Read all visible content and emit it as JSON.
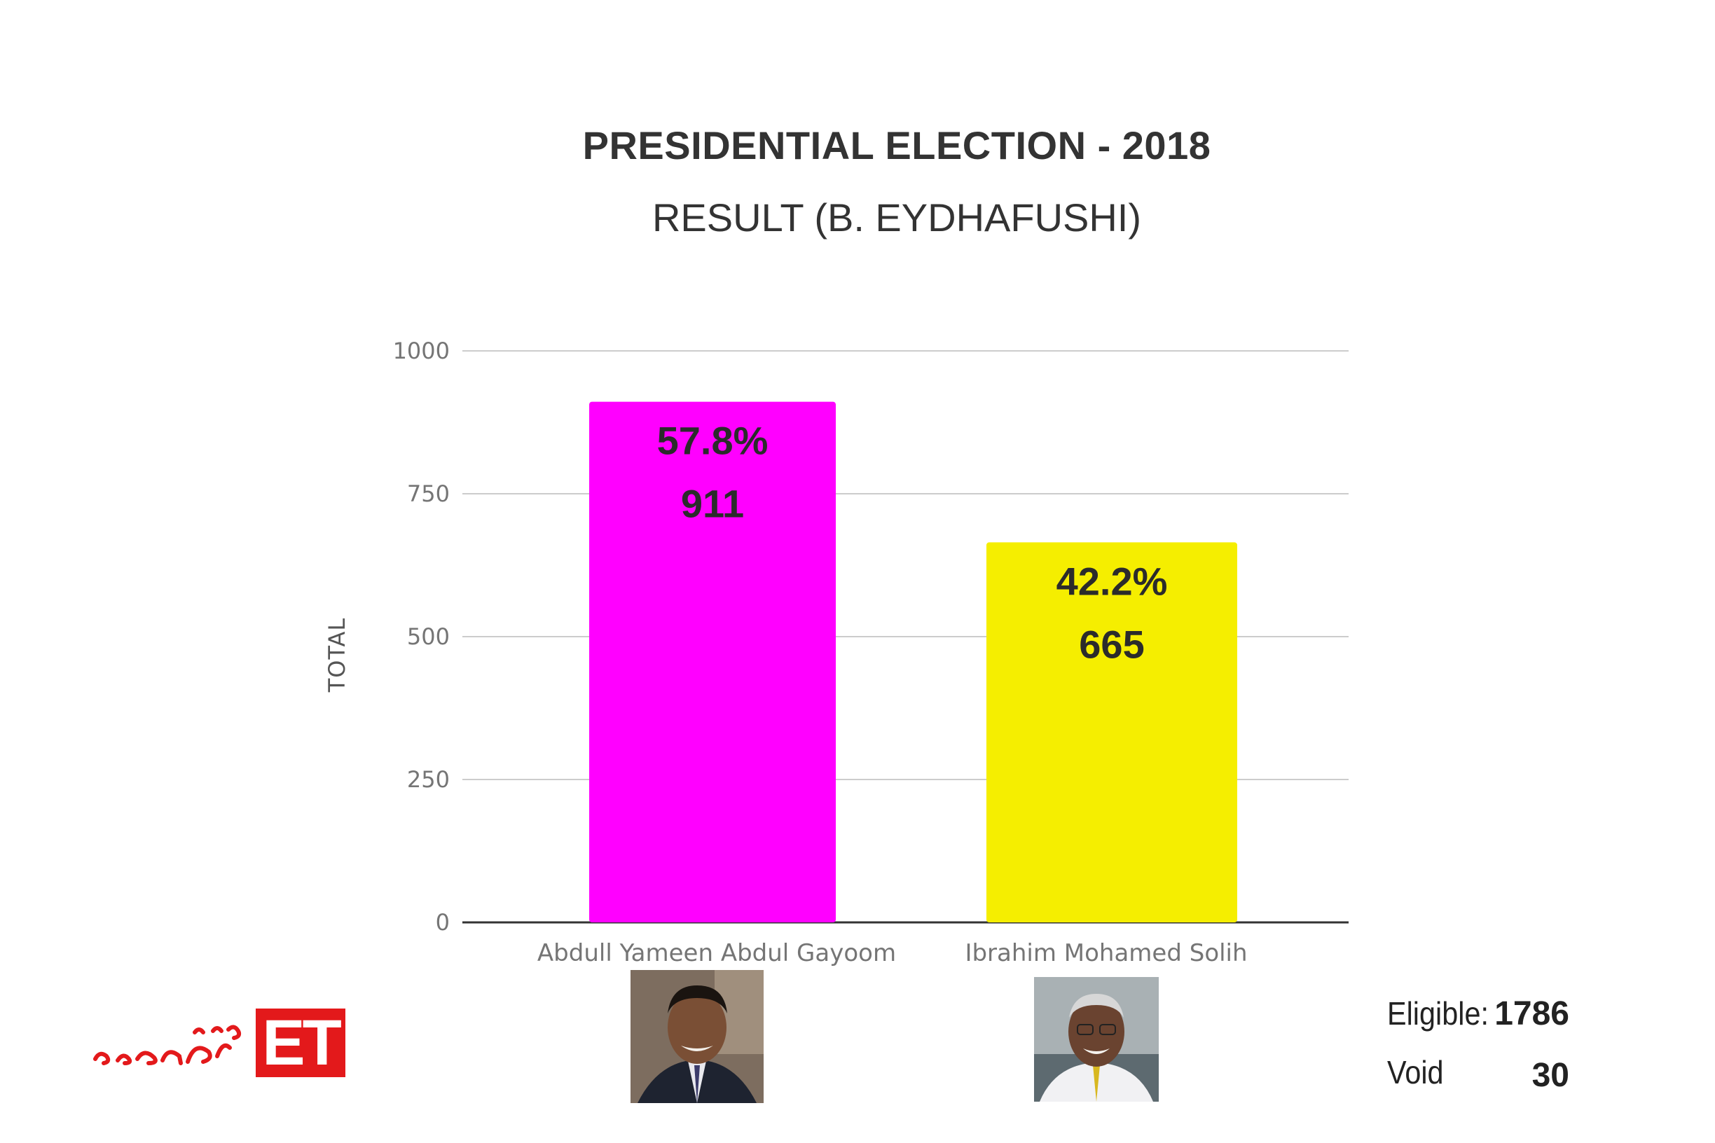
{
  "header": {
    "title": "PRESIDENTIAL ELECTION - 2018",
    "subtitle": "RESULT (B. EYDHAFUSHI)"
  },
  "chart_data": {
    "type": "bar",
    "title": "PRESIDENTIAL ELECTION - 2018",
    "subtitle": "RESULT (B. EYDHAFUSHI)",
    "xlabel": "",
    "ylabel": "TOTAL",
    "ylim": [
      0,
      1000
    ],
    "yticks": [
      0,
      250,
      500,
      750,
      1000
    ],
    "categories": [
      "Abdull Yameen Abdul Gayoom",
      "Ibrahim Mohamed Solih"
    ],
    "values": [
      911,
      665
    ],
    "data_labels": [
      {
        "percent": "57.8%",
        "value": "911"
      },
      {
        "percent": "42.2%",
        "value": "665"
      }
    ],
    "colors": [
      "#ff00ff",
      "#f5ee00"
    ],
    "grid": true,
    "legend": "none"
  },
  "candidates": [
    {
      "name": "Abdull Yameen Abdul Gayoom",
      "photo_icon": "candidate-photo"
    },
    {
      "name": "Ibrahim Mohamed Solih",
      "photo_icon": "candidate-photo"
    }
  ],
  "stats": {
    "eligible_label": "Eligible:",
    "eligible_value": "1786",
    "void_label": "Void",
    "void_value": "30"
  },
  "logo": {
    "text": "ET",
    "script_text": "ތާޒާޚަބަރު",
    "color": "#e3191b"
  }
}
